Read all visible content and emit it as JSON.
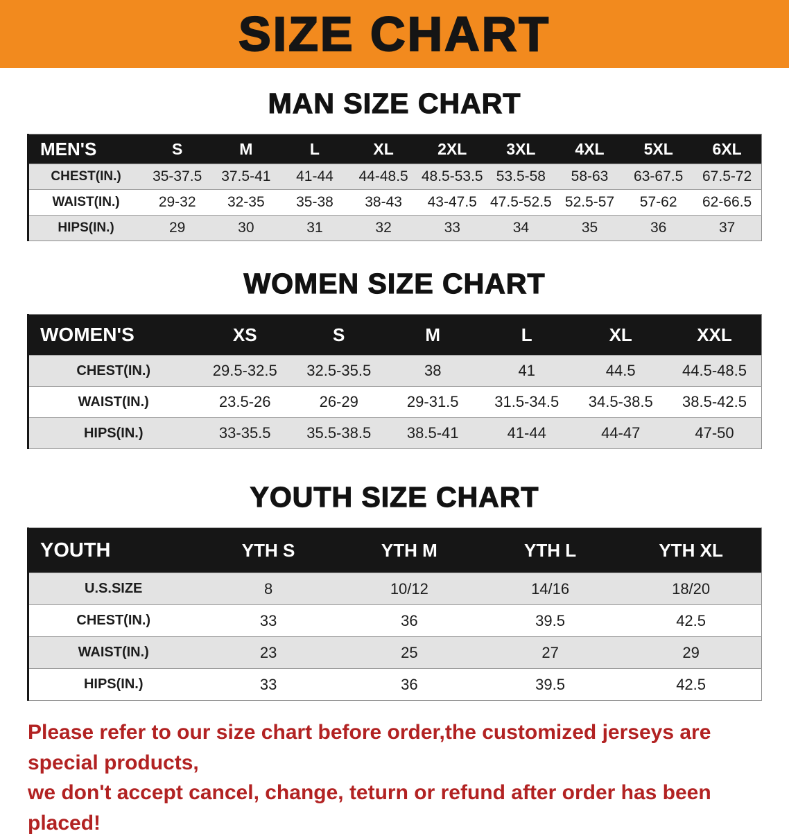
{
  "banner": {
    "title": "SIZE CHART"
  },
  "sections": [
    {
      "heading": "MAN SIZE CHART",
      "table": {
        "header": [
          "MEN'S",
          "S",
          "M",
          "L",
          "XL",
          "2XL",
          "3XL",
          "4XL",
          "5XL",
          "6XL"
        ],
        "rows": [
          [
            "CHEST(IN.)",
            "35-37.5",
            "37.5-41",
            "41-44",
            "44-48.5",
            "48.5-53.5",
            "53.5-58",
            "58-63",
            "63-67.5",
            "67.5-72"
          ],
          [
            "WAIST(IN.)",
            "29-32",
            "32-35",
            "35-38",
            "38-43",
            "43-47.5",
            "47.5-52.5",
            "52.5-57",
            "57-62",
            "62-66.5"
          ],
          [
            "HIPS(IN.)",
            "29",
            "30",
            "31",
            "32",
            "33",
            "34",
            "35",
            "36",
            "37"
          ]
        ]
      }
    },
    {
      "heading": "WOMEN SIZE CHART",
      "table": {
        "header": [
          "WOMEN'S",
          "XS",
          "S",
          "M",
          "L",
          "XL",
          "XXL"
        ],
        "rows": [
          [
            "CHEST(IN.)",
            "29.5-32.5",
            "32.5-35.5",
            "38",
            "41",
            "44.5",
            "44.5-48.5"
          ],
          [
            "WAIST(IN.)",
            "23.5-26",
            "26-29",
            "29-31.5",
            "31.5-34.5",
            "34.5-38.5",
            "38.5-42.5"
          ],
          [
            "HIPS(IN.)",
            "33-35.5",
            "35.5-38.5",
            "38.5-41",
            "41-44",
            "44-47",
            "47-50"
          ]
        ]
      }
    },
    {
      "heading": "YOUTH SIZE CHART",
      "table": {
        "header": [
          "YOUTH",
          "YTH S",
          "YTH M",
          "YTH L",
          "YTH XL"
        ],
        "rows": [
          [
            "U.S.SIZE",
            "8",
            "10/12",
            "14/16",
            "18/20"
          ],
          [
            "CHEST(IN.)",
            "33",
            "36",
            "39.5",
            "42.5"
          ],
          [
            "WAIST(IN.)",
            "23",
            "25",
            "27",
            "29"
          ],
          [
            "HIPS(IN.)",
            "33",
            "36",
            "39.5",
            "42.5"
          ]
        ]
      }
    }
  ],
  "footer": {
    "line1": "Please refer to our size chart before order,the customized jerseys are special products,",
    "line2": "we don't accept cancel, change, teturn or refund after order has been placed!"
  },
  "colors": {
    "banner_orange": "#F28A1E",
    "header_black": "#161616",
    "stripe_gray": "#e3e3e3",
    "notice_red": "#B22222"
  }
}
